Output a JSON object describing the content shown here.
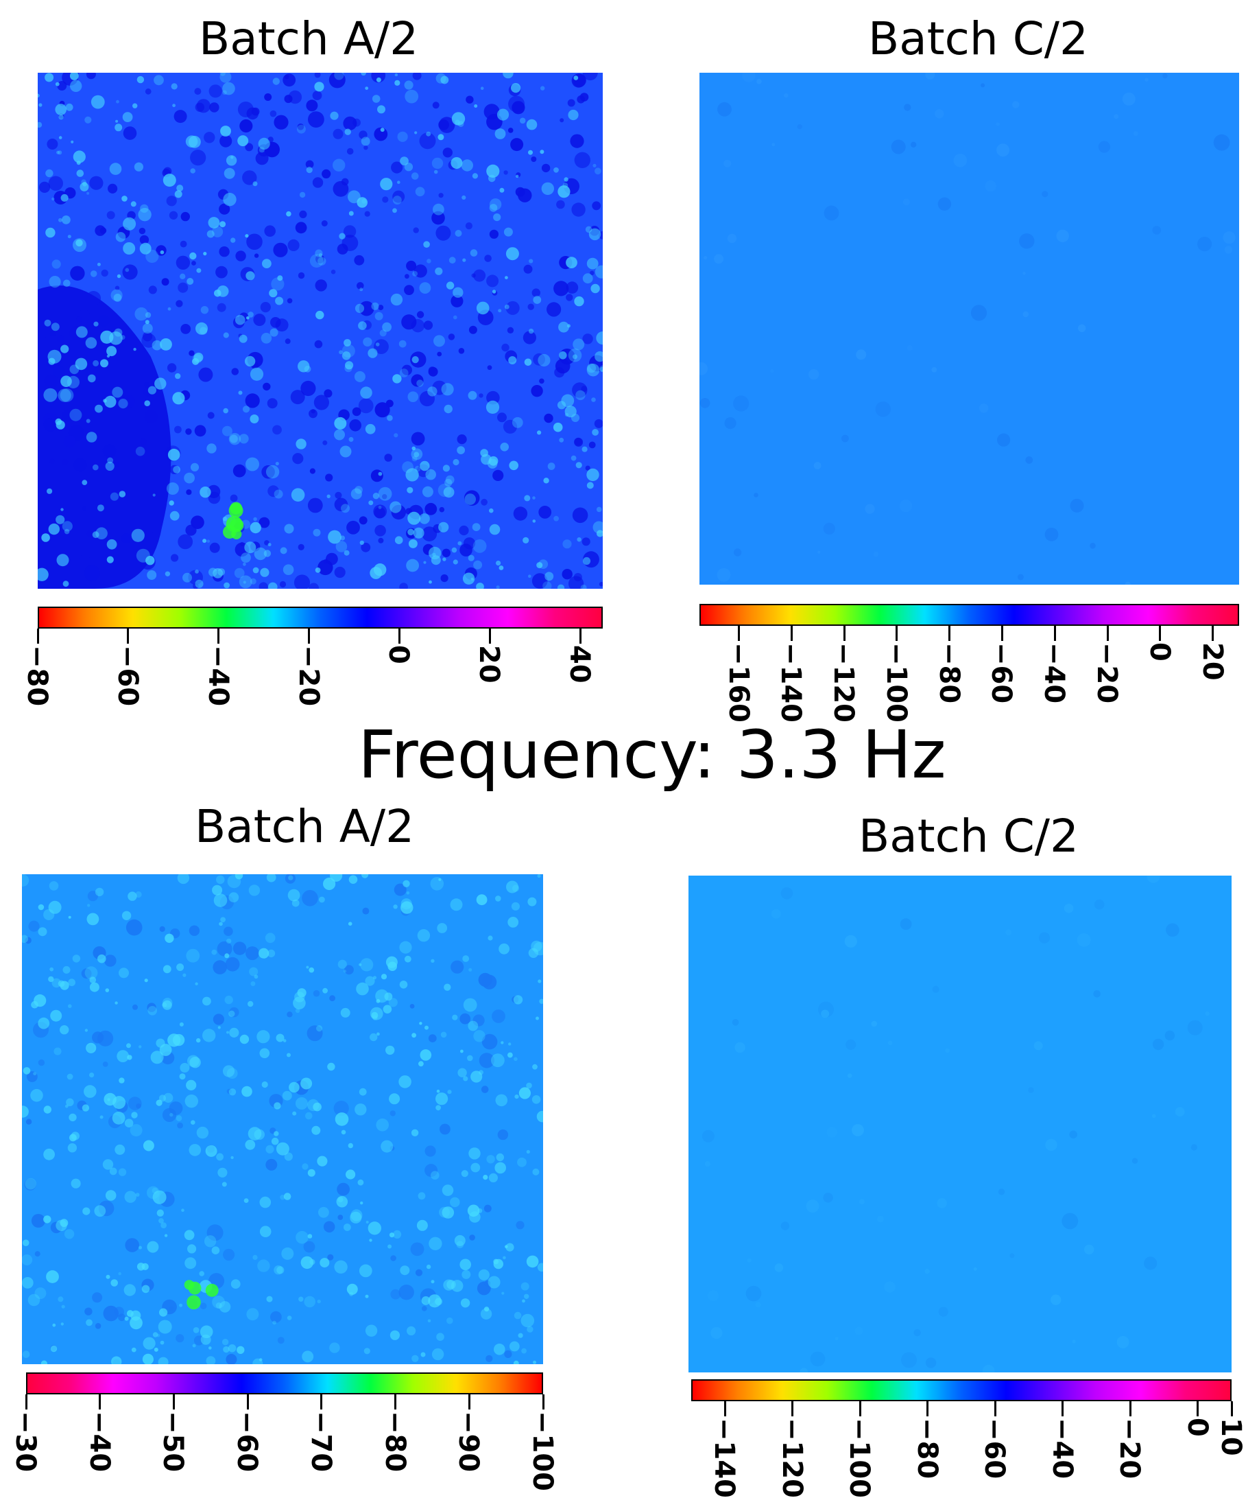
{
  "figure_caption": "Frequency: 3.3 Hz",
  "chart_data": [
    {
      "type": "heatmap",
      "title": "Batch A/2",
      "colorbar": {
        "ticks": [
          -80,
          -60,
          -40,
          -20,
          0,
          20,
          40
        ],
        "range": [
          -80,
          45
        ],
        "colors": [
          "#ff0000",
          "#ff8000",
          "#ffe000",
          "#a0ff00",
          "#00ff40",
          "#00e0ff",
          "#0060ff",
          "#0000ff",
          "#6000ff",
          "#c000ff",
          "#ff00ff",
          "#ff0080",
          "#ff0040"
        ]
      },
      "base_color": "#1e50ff",
      "dark_color": "#0a14e6",
      "spot_color": "#46d2ff",
      "hot_color": "#30ff30"
    },
    {
      "type": "heatmap",
      "title": "Batch C/2",
      "colorbar": {
        "ticks": [
          -160,
          -140,
          -120,
          -100,
          -80,
          -60,
          -40,
          -20,
          0,
          20
        ],
        "range": [
          -175,
          30
        ],
        "colors": [
          "#ff0000",
          "#ff8000",
          "#ffe000",
          "#a0ff00",
          "#00ff40",
          "#00e0ff",
          "#0060ff",
          "#0000ff",
          "#6000ff",
          "#c000ff",
          "#ff00ff",
          "#ff0080",
          "#ff0040"
        ]
      },
      "base_color": "#1e8cff",
      "dark_color": "#1a80f8",
      "spot_color": "#2a96ff",
      "hot_color": "#2a96ff"
    },
    {
      "type": "heatmap",
      "title": "Batch A/2",
      "colorbar": {
        "ticks": [
          -30,
          -40,
          -50,
          -60,
          -70,
          -80,
          -90,
          -100
        ],
        "range": [
          -30,
          -100
        ],
        "colors": [
          "#ff0040",
          "#ff0080",
          "#ff00ff",
          "#c000ff",
          "#6000ff",
          "#0000ff",
          "#0060ff",
          "#00e0ff",
          "#00ff40",
          "#a0ff00",
          "#ffe000",
          "#ff8000",
          "#ff0000"
        ]
      },
      "base_color": "#1e96ff",
      "dark_color": "#1978f5",
      "spot_color": "#46dcff",
      "hot_color": "#30ff30"
    },
    {
      "type": "heatmap",
      "title": "Batch C/2",
      "colorbar": {
        "ticks": [
          -140,
          -120,
          -100,
          -80,
          -60,
          -40,
          -20,
          0,
          10
        ],
        "range": [
          -150,
          10
        ],
        "colors": [
          "#ff0000",
          "#ff8000",
          "#ffe000",
          "#a0ff00",
          "#00ff40",
          "#00e0ff",
          "#0060ff",
          "#0000ff",
          "#6000ff",
          "#c000ff",
          "#ff00ff",
          "#ff0080",
          "#ff0040"
        ]
      },
      "base_color": "#1ea0ff",
      "dark_color": "#1b96fa",
      "spot_color": "#28aaff",
      "hot_color": "#28aaff"
    }
  ]
}
